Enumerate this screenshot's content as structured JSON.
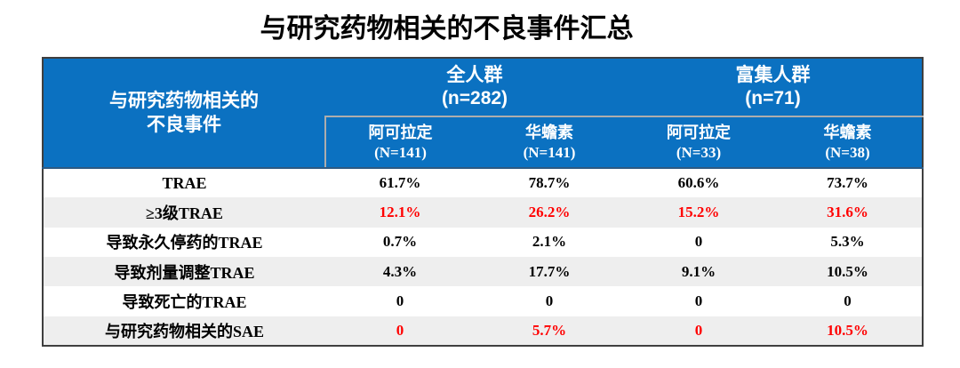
{
  "title": "与研究药物相关的不良事件汇总",
  "colors": {
    "header_bg": "#0B71C1",
    "stripe": "#EEEEEE",
    "outer_border": "#3F3F3F",
    "header_divider": "#ADADAD",
    "header_bottom": "#2E5A82",
    "highlight_value": "#FF0000"
  },
  "chart_data": {
    "type": "table",
    "title": "与研究药物相关的不良事件汇总",
    "row_header_line1": "与研究药物相关的",
    "row_header_line2": "不良事件",
    "row_header": "与研究药物相关的不良事件",
    "groups": [
      {
        "label": "全人群",
        "n_label": "(n=282)",
        "span": 2
      },
      {
        "label": "富集人群",
        "n_label": "(n=71)",
        "span": 2
      }
    ],
    "columns": [
      {
        "drug": "阿可拉定",
        "n_label": "(N=141)"
      },
      {
        "drug": "华蟾素",
        "n_label": "(N=141)"
      },
      {
        "drug": "阿可拉定",
        "n_label": "(N=33)"
      },
      {
        "drug": "华蟾素",
        "n_label": "(N=38)"
      }
    ],
    "rows": [
      {
        "label": "TRAE",
        "values": [
          "61.7%",
          "78.7%",
          "60.6%",
          "73.7%"
        ],
        "highlight": false
      },
      {
        "label": "≥3级TRAE",
        "values": [
          "12.1%",
          "26.2%",
          "15.2%",
          "31.6%"
        ],
        "highlight": true
      },
      {
        "label": "导致永久停药的TRAE",
        "values": [
          "0.7%",
          "2.1%",
          "0",
          "5.3%"
        ],
        "highlight": false
      },
      {
        "label": "导致剂量调整TRAE",
        "values": [
          "4.3%",
          "17.7%",
          "9.1%",
          "10.5%"
        ],
        "highlight": false
      },
      {
        "label": "导致死亡的TRAE",
        "values": [
          "0",
          "0",
          "0",
          "0"
        ],
        "highlight": false
      },
      {
        "label": "与研究药物相关的SAE",
        "values": [
          "0",
          "5.7%",
          "0",
          "10.5%"
        ],
        "highlight": true
      }
    ]
  }
}
